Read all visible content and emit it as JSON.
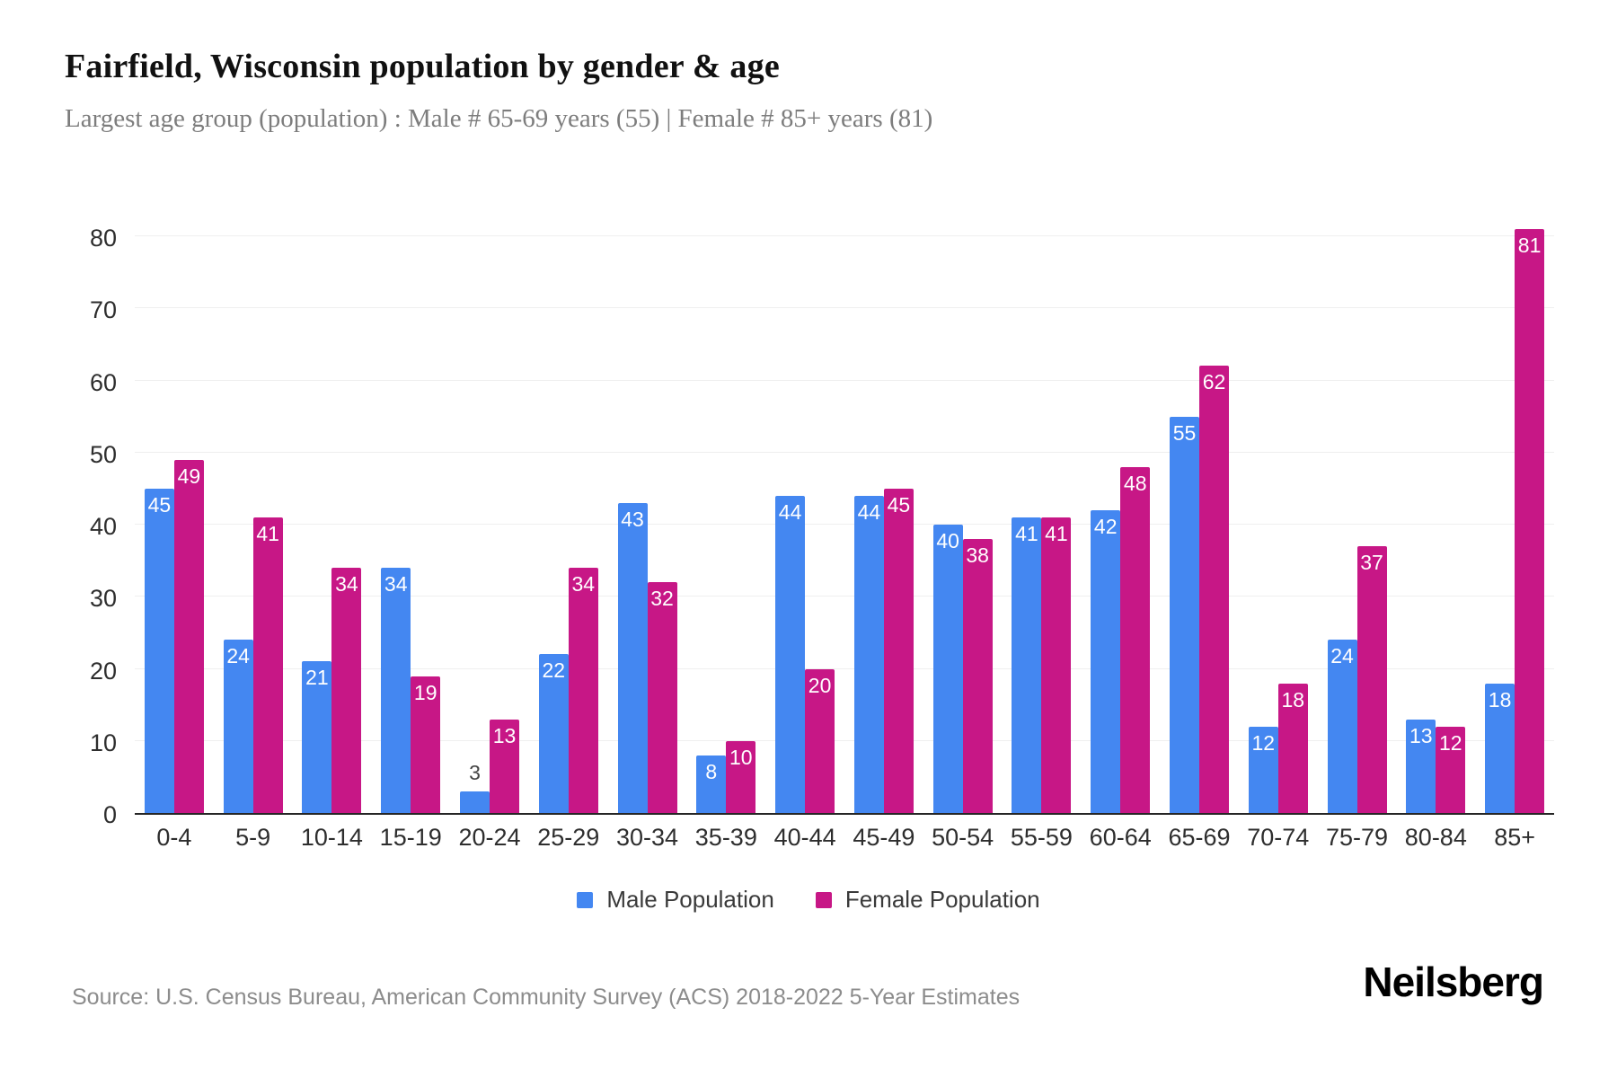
{
  "header": {
    "title": "Fairfield, Wisconsin population by gender & age",
    "subtitle": "Largest age group (population) : Male # 65-69 years (55) | Female # 85+ years (81)"
  },
  "chart_data": {
    "type": "bar",
    "title": "Fairfield, Wisconsin population by gender & age",
    "xlabel": "",
    "ylabel": "",
    "categories": [
      "0-4",
      "5-9",
      "10-14",
      "15-19",
      "20-24",
      "25-29",
      "30-34",
      "35-39",
      "40-44",
      "45-49",
      "50-54",
      "55-59",
      "60-64",
      "65-69",
      "70-74",
      "75-79",
      "80-84",
      "85+"
    ],
    "series": [
      {
        "name": "Male Population",
        "color": "#4487F1",
        "values": [
          45,
          24,
          21,
          34,
          3,
          22,
          43,
          8,
          44,
          44,
          40,
          41,
          42,
          55,
          12,
          24,
          13,
          18
        ]
      },
      {
        "name": "Female Population",
        "color": "#C71786",
        "values": [
          49,
          41,
          34,
          19,
          13,
          34,
          32,
          10,
          20,
          45,
          38,
          41,
          48,
          62,
          18,
          37,
          12,
          81
        ]
      }
    ],
    "ylim": [
      0,
      80
    ],
    "yticks": [
      0,
      10,
      20,
      30,
      40,
      50,
      60,
      70,
      80
    ],
    "grid": true,
    "legend_position": "bottom",
    "bar_label_color_inside": "#ffffff",
    "bar_label_color_outside": "#444444"
  },
  "legend": {
    "items": [
      {
        "label": "Male Population",
        "color": "#4487F1"
      },
      {
        "label": "Female Population",
        "color": "#C71786"
      }
    ]
  },
  "footer": {
    "source": "Source: U.S. Census Bureau, American Community Survey (ACS) 2018-2022 5-Year Estimates",
    "brand": "Neilsberg"
  }
}
